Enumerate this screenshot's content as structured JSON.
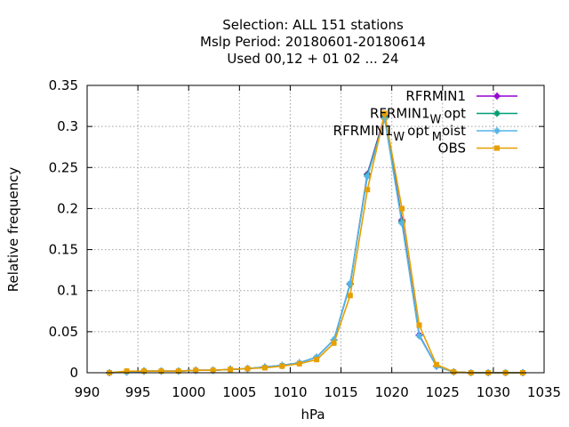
{
  "chart_data": {
    "type": "line",
    "title_lines": [
      "Selection: ALL     151 stations",
      "Mslp  Period: 20180601-20180614",
      "Used  00,12  + 01 02 ... 24"
    ],
    "xlabel": "hPa",
    "ylabel": "Relative frequency",
    "xlim": [
      990,
      1035
    ],
    "ylim": [
      0,
      0.35
    ],
    "xticks": [
      990,
      995,
      1000,
      1005,
      1010,
      1015,
      1020,
      1025,
      1030,
      1035
    ],
    "yticks": [
      0,
      0.05,
      0.1,
      0.15,
      0.2,
      0.25,
      0.3,
      0.35
    ],
    "grid": true,
    "legend_position": "top-right",
    "x": [
      992.2,
      993.9,
      995.6,
      997.3,
      999.0,
      1000.7,
      1002.4,
      1004.1,
      1005.8,
      1007.5,
      1009.2,
      1010.9,
      1012.6,
      1014.3,
      1015.9,
      1017.6,
      1019.3,
      1021.0,
      1022.7,
      1024.4,
      1026.1,
      1027.8,
      1029.5,
      1031.2,
      1032.9
    ],
    "series": [
      {
        "name": "RFRMIN1",
        "legend_base": "RFRMIN1",
        "color": "#9400d3",
        "marker": "cross-square",
        "values": [
          0.0,
          0.001,
          0.002,
          0.002,
          0.002,
          0.003,
          0.003,
          0.004,
          0.005,
          0.007,
          0.009,
          0.012,
          0.019,
          0.04,
          0.108,
          0.242,
          0.313,
          0.186,
          0.046,
          0.008,
          0.001,
          0.0,
          0.0,
          0.0,
          0.0
        ]
      },
      {
        "name": "RFRMIN1_W opt",
        "legend_base": "RFRMIN1",
        "legend_sub": "W",
        "legend_rest": "opt",
        "color": "#009e73",
        "marker": "cross-square",
        "values": [
          0.0,
          0.001,
          0.002,
          0.002,
          0.002,
          0.003,
          0.003,
          0.004,
          0.005,
          0.007,
          0.009,
          0.012,
          0.019,
          0.04,
          0.108,
          0.241,
          0.311,
          0.184,
          0.045,
          0.008,
          0.001,
          0.0,
          0.0,
          0.0,
          0.0
        ]
      },
      {
        "name": "RFRMIN1_W opt_M oist",
        "legend_base": "RFRMIN1",
        "legend_sub": "W",
        "legend_rest": "opt",
        "legend_sub2": "M",
        "legend_rest2": "oist",
        "color": "#56b4e9",
        "marker": "cross-square",
        "values": [
          0.0,
          0.001,
          0.002,
          0.002,
          0.002,
          0.003,
          0.003,
          0.004,
          0.005,
          0.007,
          0.009,
          0.012,
          0.019,
          0.04,
          0.109,
          0.239,
          0.309,
          0.182,
          0.045,
          0.008,
          0.001,
          0.0,
          0.0,
          0.0,
          0.0
        ]
      },
      {
        "name": "OBS",
        "legend_base": "OBS",
        "color": "#e69f00",
        "marker": "filled-square",
        "values": [
          0.0,
          0.002,
          0.002,
          0.002,
          0.002,
          0.003,
          0.003,
          0.004,
          0.005,
          0.006,
          0.008,
          0.011,
          0.016,
          0.036,
          0.094,
          0.223,
          0.316,
          0.2,
          0.058,
          0.01,
          0.001,
          0.0,
          0.0,
          0.0,
          0.0
        ]
      }
    ]
  }
}
